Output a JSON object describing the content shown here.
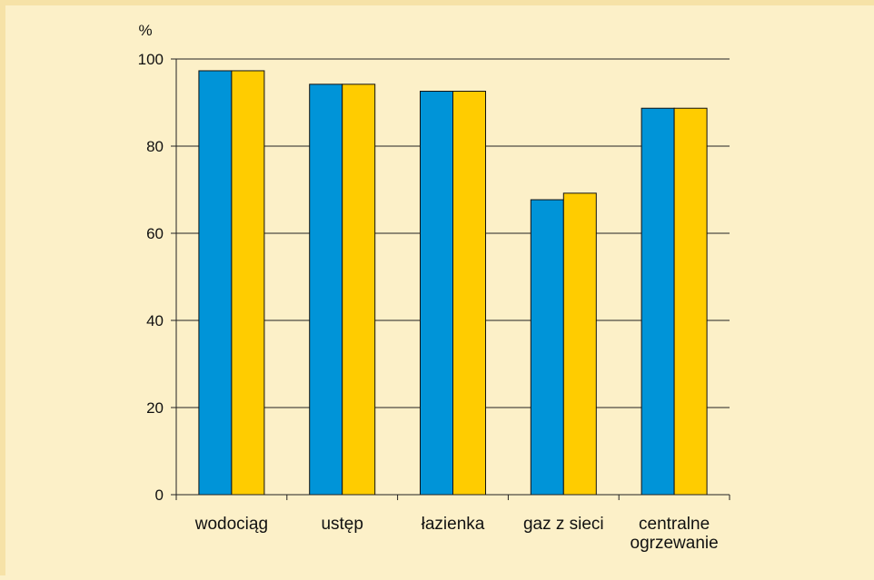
{
  "chart_data": {
    "type": "bar",
    "categories": [
      "wodociąg",
      "ustęp",
      "łazienka",
      "gaz z sieci",
      "centralne ogrzewanie"
    ],
    "category_lines": [
      [
        "wodociąg"
      ],
      [
        "ustęp"
      ],
      [
        "łazienka"
      ],
      [
        "gaz z sieci"
      ],
      [
        "centralne",
        "ogrzewanie"
      ]
    ],
    "series": [
      {
        "values": [
          97.3,
          94.2,
          92.6,
          67.7,
          88.7
        ]
      },
      {
        "values": [
          97.3,
          94.2,
          92.6,
          69.2,
          88.7
        ]
      }
    ],
    "ylabel": "%",
    "ylim": [
      0,
      100
    ],
    "yticks": [
      0,
      20,
      40,
      60,
      80,
      100
    ],
    "grid": true,
    "colors": [
      "#0094d8",
      "#ffcc00"
    ],
    "background": "#fcf0c8"
  }
}
